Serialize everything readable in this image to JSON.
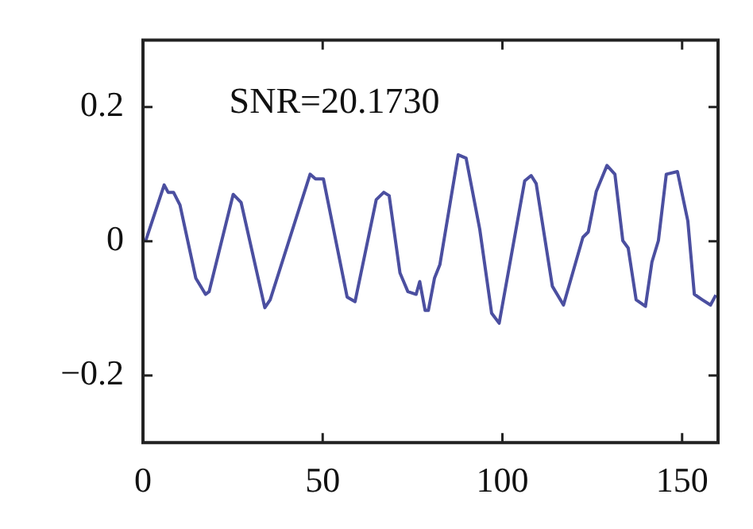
{
  "chart_data": {
    "type": "line",
    "annotations": [
      "SNR=20.1730"
    ],
    "x": [
      0.7,
      5.9,
      7,
      8.5,
      10.3,
      14.7,
      17.4,
      18.4,
      25.1,
      27.3,
      33.9,
      35.4,
      46.5,
      48,
      50.2,
      56.8,
      59,
      64.9,
      67,
      68.5,
      71.5,
      73.7,
      76,
      77,
      78.5,
      79.4,
      81.1,
      82.6,
      87.7,
      89.9,
      93.7,
      97,
      99.1,
      106.2,
      108,
      109.4,
      113.9,
      117,
      122.4,
      123.9,
      126.1,
      129.1,
      131.3,
      133.5,
      135,
      137.2,
      139.8,
      141.6,
      143.4,
      145.6,
      148.7,
      151.6,
      153.4,
      155.6,
      157.9,
      159.4
    ],
    "series": [
      {
        "color": "#4b4fa0",
        "values": [
          0,
          0.084,
          0.073,
          0.073,
          0.054,
          -0.055,
          -0.079,
          -0.075,
          0.07,
          0.058,
          -0.099,
          -0.087,
          0.1,
          0.093,
          0.093,
          -0.083,
          -0.09,
          0.062,
          0.073,
          0.068,
          -0.047,
          -0.075,
          -0.079,
          -0.06,
          -0.103,
          -0.103,
          -0.055,
          -0.035,
          0.129,
          0.124,
          0.018,
          -0.107,
          -0.122,
          0.09,
          0.098,
          0.086,
          -0.067,
          -0.095,
          0.006,
          0.014,
          0.074,
          0.113,
          0.1,
          0.001,
          -0.01,
          -0.087,
          -0.097,
          -0.031,
          0.001,
          0.1,
          0.104,
          0.03,
          -0.079,
          -0.087,
          -0.095,
          -0.08
        ]
      }
    ],
    "xlim": [
      0,
      160
    ],
    "xticks": [
      0,
      50,
      100,
      150
    ],
    "ylim": [
      -0.3,
      0.3
    ],
    "yticks": [
      -0.2,
      0,
      0.2
    ],
    "grid": false,
    "legend": false,
    "marker": "none",
    "line_style": "solid"
  }
}
